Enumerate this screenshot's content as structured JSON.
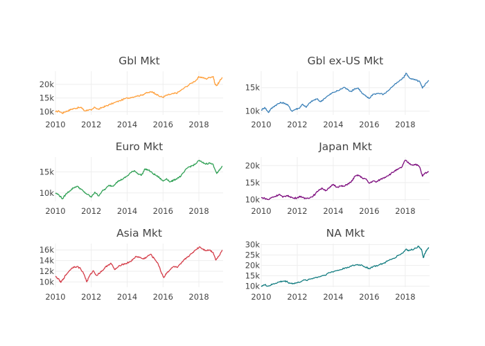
{
  "chart_data": [
    {
      "type": "line",
      "title": "Gbl Mkt",
      "color": "#ff9f3a",
      "xlim": [
        2010,
        2019.35
      ],
      "ylim": [
        8800,
        24800
      ],
      "x_ticks": [
        2010,
        2012,
        2014,
        2016,
        2018
      ],
      "x_tick_labels": [
        "2010",
        "2012",
        "2014",
        "2016",
        "2018"
      ],
      "y_ticks": [
        10000,
        15000,
        20000
      ],
      "y_tick_labels": [
        "10k",
        "15k",
        "20k"
      ],
      "grid": true,
      "x": [
        2010.0,
        2010.2,
        2010.4,
        2010.5,
        2010.7,
        2010.9,
        2011.1,
        2011.3,
        2011.5,
        2011.6,
        2011.8,
        2012.0,
        2012.2,
        2012.4,
        2012.6,
        2012.8,
        2013.0,
        2013.3,
        2013.6,
        2013.9,
        2014.2,
        2014.5,
        2014.8,
        2015.0,
        2015.2,
        2015.4,
        2015.6,
        2015.8,
        2016.0,
        2016.2,
        2016.4,
        2016.6,
        2016.8,
        2017.0,
        2017.3,
        2017.6,
        2017.9,
        2018.0,
        2018.2,
        2018.4,
        2018.6,
        2018.8,
        2018.9,
        2019.0,
        2019.15,
        2019.3
      ],
      "y": [
        9900,
        10200,
        9400,
        9900,
        10300,
        10900,
        11200,
        11500,
        11300,
        10300,
        10600,
        10500,
        11600,
        10800,
        11500,
        12000,
        12500,
        13300,
        14000,
        14800,
        15200,
        15700,
        16000,
        16700,
        17000,
        17300,
        16500,
        15600,
        15300,
        16000,
        16300,
        16600,
        16900,
        17800,
        19200,
        20500,
        21800,
        22800,
        22500,
        22000,
        22600,
        22900,
        20000,
        19600,
        21000,
        22600
      ]
    },
    {
      "type": "line",
      "title": "Gbl ex-US Mkt",
      "color": "#3b80b8",
      "xlim": [
        2010,
        2019.35
      ],
      "ylim": [
        9200,
        18500
      ],
      "x_ticks": [
        2010,
        2012,
        2014,
        2016,
        2018
      ],
      "x_tick_labels": [
        "2010",
        "2012",
        "2014",
        "2016",
        "2018"
      ],
      "y_ticks": [
        10000,
        15000
      ],
      "y_tick_labels": [
        "10k",
        "15k"
      ],
      "grid": true,
      "x": [
        2010.0,
        2010.2,
        2010.4,
        2010.5,
        2010.7,
        2010.9,
        2011.1,
        2011.3,
        2011.5,
        2011.7,
        2011.9,
        2012.1,
        2012.3,
        2012.5,
        2012.7,
        2012.9,
        2013.1,
        2013.3,
        2013.5,
        2013.8,
        2014.0,
        2014.3,
        2014.6,
        2014.8,
        2015.0,
        2015.2,
        2015.4,
        2015.6,
        2015.8,
        2016.0,
        2016.2,
        2016.5,
        2016.8,
        2017.0,
        2017.3,
        2017.6,
        2017.9,
        2018.05,
        2018.2,
        2018.4,
        2018.6,
        2018.8,
        2018.95,
        2019.1,
        2019.3
      ],
      "y": [
        10200,
        10800,
        9700,
        10300,
        11000,
        11500,
        11800,
        11700,
        11200,
        10000,
        10400,
        10600,
        11500,
        10800,
        11800,
        12300,
        12600,
        12000,
        12700,
        13500,
        14000,
        14400,
        15100,
        14600,
        14200,
        14800,
        14900,
        13800,
        13200,
        12700,
        13600,
        13800,
        13600,
        14200,
        15300,
        16200,
        17100,
        18100,
        17200,
        16800,
        16600,
        16300,
        14900,
        15700,
        16600
      ]
    },
    {
      "type": "line",
      "title": "Euro Mkt",
      "color": "#2fa054",
      "xlim": [
        2010,
        2019.35
      ],
      "ylim": [
        8000,
        18500
      ],
      "x_ticks": [
        2010,
        2012,
        2014,
        2016,
        2018
      ],
      "x_tick_labels": [
        "2010",
        "2012",
        "2014",
        "2016",
        "2018"
      ],
      "y_ticks": [
        10000,
        15000
      ],
      "y_tick_labels": [
        "10k",
        "15k"
      ],
      "grid": true,
      "x": [
        2010.0,
        2010.2,
        2010.4,
        2010.6,
        2010.8,
        2011.0,
        2011.2,
        2011.4,
        2011.6,
        2011.8,
        2012.0,
        2012.2,
        2012.4,
        2012.6,
        2012.8,
        2013.0,
        2013.2,
        2013.4,
        2013.6,
        2013.8,
        2014.0,
        2014.2,
        2014.4,
        2014.6,
        2014.8,
        2015.0,
        2015.2,
        2015.4,
        2015.6,
        2015.8,
        2016.0,
        2016.2,
        2016.4,
        2016.6,
        2016.8,
        2017.0,
        2017.2,
        2017.4,
        2017.6,
        2017.8,
        2018.0,
        2018.2,
        2018.4,
        2018.6,
        2018.8,
        2019.0,
        2019.15,
        2019.3
      ],
      "y": [
        10000,
        9500,
        8600,
        9800,
        10500,
        11200,
        11600,
        11000,
        10200,
        9600,
        9000,
        10200,
        9300,
        10400,
        11000,
        11800,
        11600,
        12500,
        13000,
        13400,
        14000,
        14800,
        15300,
        14600,
        14200,
        15700,
        15400,
        14700,
        14200,
        13600,
        12800,
        13400,
        12600,
        13000,
        13500,
        14000,
        15100,
        16100,
        16400,
        16800,
        17700,
        17200,
        16900,
        17100,
        16700,
        14600,
        15400,
        16400
      ]
    },
    {
      "type": "line",
      "title": "Japan Mkt",
      "color": "#7c0b7d",
      "xlim": [
        2010,
        2019.35
      ],
      "ylim": [
        9500,
        22500
      ],
      "x_ticks": [
        2010,
        2012,
        2014,
        2016,
        2018
      ],
      "x_tick_labels": [
        "2010",
        "2012",
        "2014",
        "2016",
        "2018"
      ],
      "y_ticks": [
        10000,
        15000,
        20000
      ],
      "y_tick_labels": [
        "10k",
        "15k",
        "20k"
      ],
      "grid": true,
      "x": [
        2010.0,
        2010.2,
        2010.4,
        2010.6,
        2010.8,
        2011.0,
        2011.2,
        2011.4,
        2011.6,
        2011.8,
        2012.0,
        2012.2,
        2012.4,
        2012.6,
        2012.8,
        2013.0,
        2013.2,
        2013.4,
        2013.6,
        2013.8,
        2014.0,
        2014.2,
        2014.4,
        2014.6,
        2014.8,
        2015.0,
        2015.2,
        2015.4,
        2015.6,
        2015.8,
        2016.0,
        2016.2,
        2016.4,
        2016.6,
        2016.8,
        2017.0,
        2017.2,
        2017.4,
        2017.6,
        2017.8,
        2018.0,
        2018.2,
        2018.4,
        2018.6,
        2018.8,
        2018.95,
        2019.1,
        2019.3
      ],
      "y": [
        10600,
        10400,
        10000,
        10700,
        11000,
        11600,
        10700,
        11200,
        10900,
        10400,
        10600,
        11000,
        10300,
        10500,
        10800,
        11600,
        12900,
        13300,
        12700,
        13500,
        14500,
        13700,
        14000,
        13900,
        14600,
        15200,
        16800,
        17200,
        16400,
        16100,
        14800,
        15500,
        15200,
        15900,
        16400,
        17000,
        17600,
        18400,
        18900,
        19500,
        21600,
        20700,
        20200,
        20400,
        19600,
        16900,
        17800,
        18200
      ]
    },
    {
      "type": "line",
      "title": "Asia Mkt",
      "color": "#d43c48",
      "xlim": [
        2010,
        2019.35
      ],
      "ylim": [
        9000,
        17200
      ],
      "x_ticks": [
        2010,
        2012,
        2014,
        2016,
        2018
      ],
      "x_tick_labels": [
        "2010",
        "2012",
        "2014",
        "2016",
        "2018"
      ],
      "y_ticks": [
        10000,
        12000,
        14000,
        16000
      ],
      "y_tick_labels": [
        "10k",
        "12k",
        "14k",
        "16k"
      ],
      "grid": true,
      "x": [
        2010.0,
        2010.15,
        2010.3,
        2010.45,
        2010.6,
        2010.8,
        2011.0,
        2011.2,
        2011.4,
        2011.6,
        2011.75,
        2011.9,
        2012.1,
        2012.3,
        2012.5,
        2012.7,
        2012.9,
        2013.1,
        2013.3,
        2013.5,
        2013.7,
        2013.9,
        2014.1,
        2014.3,
        2014.5,
        2014.7,
        2014.9,
        2015.1,
        2015.3,
        2015.5,
        2015.7,
        2015.9,
        2016.05,
        2016.2,
        2016.4,
        2016.6,
        2016.8,
        2017.0,
        2017.2,
        2017.4,
        2017.6,
        2017.8,
        2018.05,
        2018.2,
        2018.4,
        2018.6,
        2018.8,
        2018.95,
        2019.1,
        2019.3
      ],
      "y": [
        11000,
        10600,
        9900,
        10600,
        11400,
        12200,
        12800,
        12900,
        12500,
        11400,
        10000,
        11100,
        12100,
        11200,
        11800,
        12400,
        13100,
        13500,
        12300,
        12800,
        13300,
        13400,
        13700,
        14100,
        14800,
        14600,
        14300,
        14700,
        15200,
        14400,
        13600,
        11800,
        10800,
        11700,
        12300,
        12900,
        12700,
        13400,
        14200,
        14800,
        15300,
        16000,
        16600,
        16200,
        15900,
        16000,
        15500,
        14100,
        14800,
        16000
      ]
    },
    {
      "type": "line",
      "title": "NA Mkt",
      "color": "#127c80",
      "xlim": [
        2010,
        2019.35
      ],
      "ylim": [
        9500,
        30500
      ],
      "x_ticks": [
        2010,
        2012,
        2014,
        2016,
        2018
      ],
      "x_tick_labels": [
        "2010",
        "2012",
        "2014",
        "2016",
        "2018"
      ],
      "y_ticks": [
        10000,
        15000,
        20000,
        25000,
        30000
      ],
      "y_tick_labels": [
        "10k",
        "15k",
        "20k",
        "25k",
        "30k"
      ],
      "grid": true,
      "x": [
        2010.0,
        2010.2,
        2010.4,
        2010.6,
        2010.8,
        2011.0,
        2011.2,
        2011.4,
        2011.6,
        2011.8,
        2012.0,
        2012.3,
        2012.6,
        2012.9,
        2013.2,
        2013.5,
        2013.8,
        2014.1,
        2014.4,
        2014.7,
        2015.0,
        2015.3,
        2015.6,
        2015.8,
        2016.0,
        2016.2,
        2016.5,
        2016.8,
        2017.0,
        2017.3,
        2017.6,
        2017.9,
        2018.05,
        2018.2,
        2018.5,
        2018.75,
        2018.9,
        2019.0,
        2019.15,
        2019.3
      ],
      "y": [
        10100,
        10600,
        10000,
        10800,
        11400,
        12000,
        12400,
        12300,
        11400,
        11300,
        11600,
        12600,
        13100,
        13900,
        14500,
        15300,
        16500,
        17300,
        17900,
        18900,
        19600,
        20300,
        20100,
        19100,
        18500,
        19400,
        20000,
        21000,
        22000,
        23200,
        24700,
        26300,
        27900,
        27000,
        28000,
        29200,
        27800,
        23700,
        27000,
        28700
      ]
    }
  ]
}
